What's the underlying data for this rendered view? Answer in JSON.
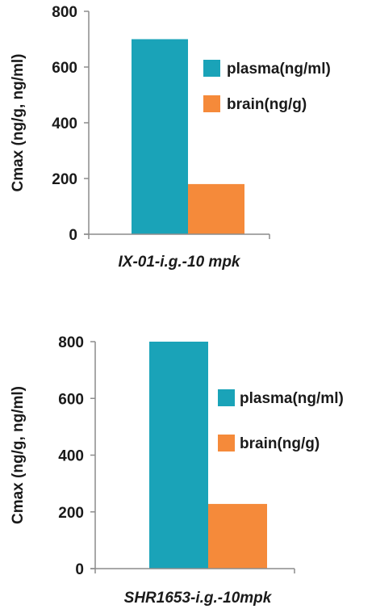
{
  "colors": {
    "plasma": "#1aa3b8",
    "brain": "#f58a3a",
    "axis": "#8c8c8c"
  },
  "chart_data": [
    {
      "type": "bar",
      "categories": [
        "IX-01-i.g.-10 mpk"
      ],
      "xlabel": "IX-01-i.g.-10 mpk",
      "ylabel": "Cmax (ng/g, ng/ml)",
      "ylim": [
        0,
        800
      ],
      "yticks": [
        "0",
        "200",
        "400",
        "600",
        "800"
      ],
      "legend": "right",
      "grid": false,
      "series": [
        {
          "name": "plasma(ng/ml)",
          "values": [
            700
          ]
        },
        {
          "name": "brain(ng/g)",
          "values": [
            180
          ]
        }
      ]
    },
    {
      "type": "bar",
      "categories": [
        "SHR1653-i.g.-10mpk"
      ],
      "xlabel": "SHR1653-i.g.-10mpk",
      "ylabel": "Cmax (ng/g, ng/ml)",
      "ylim": [
        0,
        800
      ],
      "yticks": [
        "0",
        "200",
        "400",
        "600",
        "800"
      ],
      "legend": "right",
      "grid": false,
      "series": [
        {
          "name": "plasma(ng/ml)",
          "values": [
            800
          ]
        },
        {
          "name": "brain(ng/g)",
          "values": [
            228
          ]
        }
      ]
    }
  ]
}
